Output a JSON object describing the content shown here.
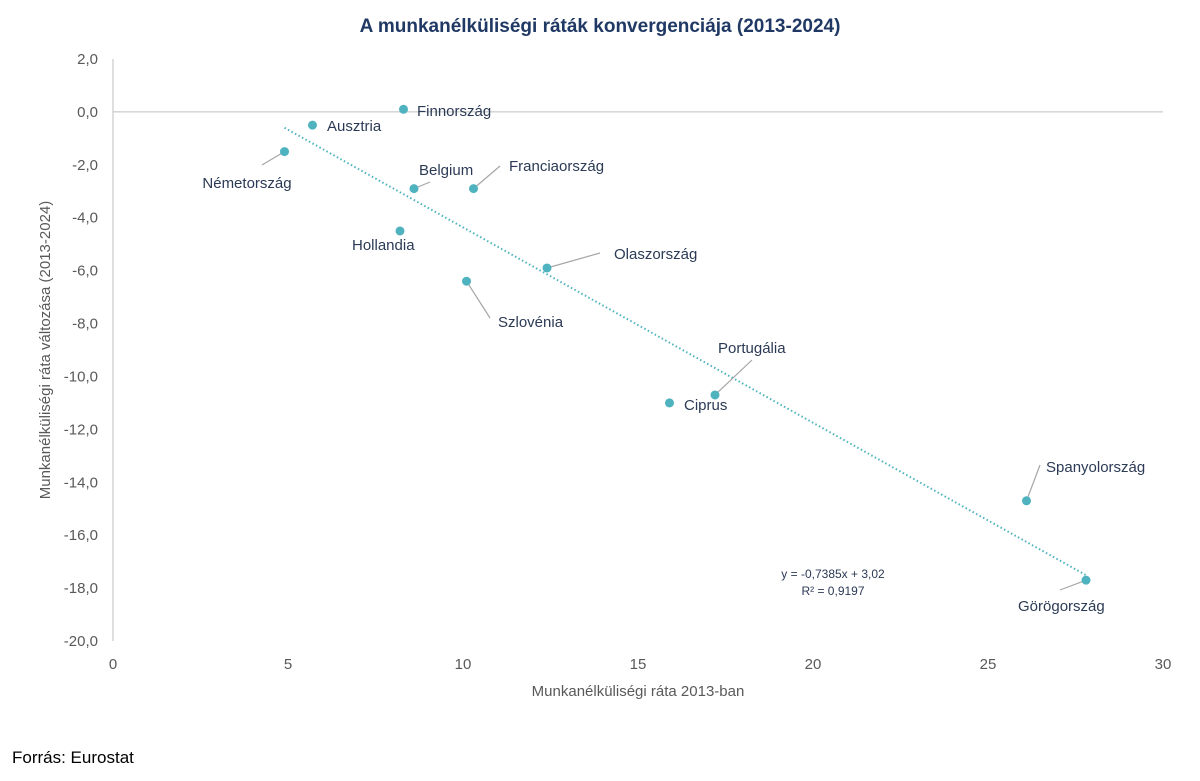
{
  "chart_data": {
    "type": "scatter",
    "title": "A munkanélküliségi ráták konvergenciája (2013-2024)",
    "xlabel": "Munkanélküliségi ráta 2013-ban",
    "ylabel": "Munkanélküliségi ráta változása (2013-2024)",
    "xlim": [
      0,
      30
    ],
    "ylim": [
      -20,
      2
    ],
    "x_ticks": [
      "0",
      "5",
      "10",
      "15",
      "20",
      "25",
      "30"
    ],
    "y_ticks": [
      "2,0",
      "0,0",
      "-2,0",
      "-4,0",
      "-6,0",
      "-8,0",
      "-10,0",
      "-12,0",
      "-14,0",
      "-16,0",
      "-18,0",
      "-20,0"
    ],
    "grid": false,
    "point_color": "#4fb3bf",
    "points": [
      {
        "label": "Finnország",
        "x": 8.3,
        "y": 0.1
      },
      {
        "label": "Ausztria",
        "x": 5.7,
        "y": -0.5
      },
      {
        "label": "Németország",
        "x": 4.9,
        "y": -1.5
      },
      {
        "label": "Belgium",
        "x": 8.6,
        "y": -2.9
      },
      {
        "label": "Franciaország",
        "x": 10.3,
        "y": -2.9
      },
      {
        "label": "Hollandia",
        "x": 8.2,
        "y": -4.5
      },
      {
        "label": "Olaszország",
        "x": 12.4,
        "y": -5.9
      },
      {
        "label": "Szlovénia",
        "x": 10.1,
        "y": -6.4
      },
      {
        "label": "Ciprus",
        "x": 15.9,
        "y": -11.0
      },
      {
        "label": "Portugália",
        "x": 17.2,
        "y": -10.7
      },
      {
        "label": "Spanyolország",
        "x": 26.1,
        "y": -14.7
      },
      {
        "label": "Görögország",
        "x": 27.8,
        "y": -17.7
      }
    ],
    "trendline": {
      "slope": -0.7385,
      "intercept": 3.02,
      "equation": "y = -0,7385x + 3,02",
      "r2": "R² = 0,9197",
      "style": "dotted"
    }
  },
  "source": "Forrás: Eurostat"
}
